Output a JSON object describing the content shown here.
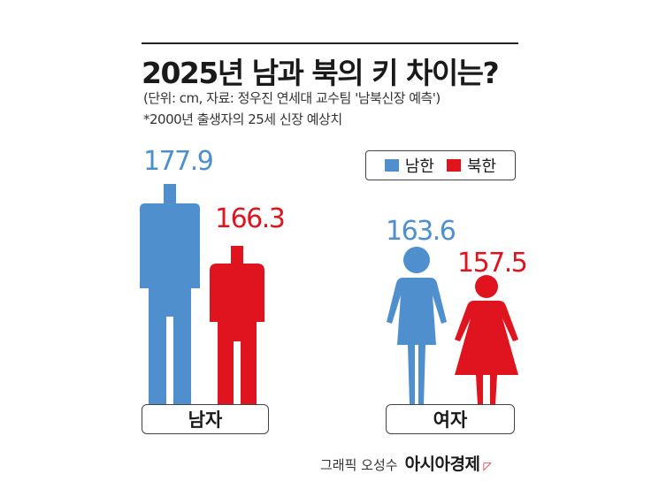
{
  "header": {
    "title": "2025년 남과 북의 키 차이는?",
    "source": "(단위: cm, 자료: 정우진 연세대 교수팀 '남북신장 예측')",
    "footnote": "*2000년 출생자의 25세 신장 예상치"
  },
  "legend": {
    "south": "남한",
    "north": "북한"
  },
  "colors": {
    "south": "#4f8fce",
    "north": "#e0141e"
  },
  "categories": {
    "male": "남자",
    "female": "여자"
  },
  "labels": {
    "male_south": "177.9",
    "male_north": "166.3",
    "female_south": "163.6",
    "female_north": "157.5"
  },
  "chart_data": {
    "type": "bar",
    "title": "2025년 남과 북의 키 차이는?",
    "unit": "cm",
    "categories": [
      "남자",
      "여자"
    ],
    "series": [
      {
        "name": "남한",
        "values": [
          177.9,
          163.6
        ]
      },
      {
        "name": "북한",
        "values": [
          166.3,
          157.5
        ]
      }
    ]
  },
  "credit": {
    "name": "그래픽 오성수",
    "brand": "아시아경제",
    "mark": "◸"
  }
}
